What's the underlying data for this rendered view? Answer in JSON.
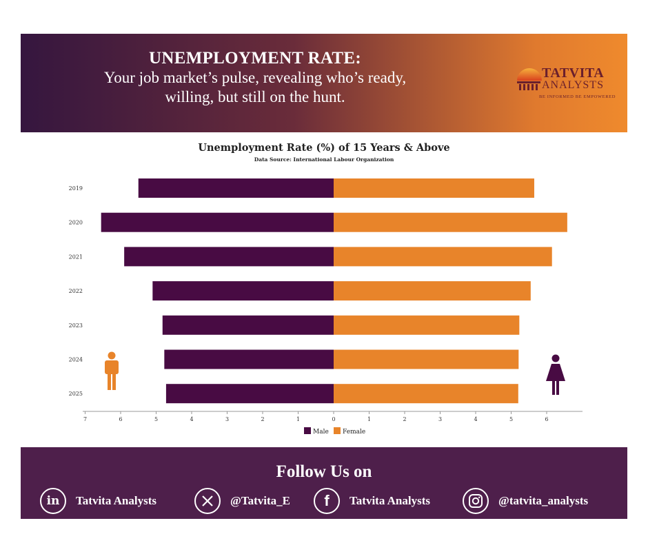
{
  "header": {
    "title": "UNEMPLOYMENT RATE:",
    "subtitle_line1": "Your job market’s pulse, revealing who’s ready,",
    "subtitle_line2": "willing, but still on the hunt.",
    "logo_name": "TATVITA",
    "logo_sub": "ANALYSTS",
    "logo_tagline": "BE INFORMED BE EMPOWERED"
  },
  "colors": {
    "male": "#480b43",
    "female": "#e8842a",
    "footer_bg": "#4e1f4b"
  },
  "chart_data": {
    "type": "bar",
    "orientation": "horizontal-diverging",
    "title": "Unemployment Rate (%) of 15 Years & Above",
    "subtitle": "Data Source: International Labour Organization",
    "categories": [
      "2019",
      "2020",
      "2021",
      "2022",
      "2023",
      "2024",
      "2025"
    ],
    "series": [
      {
        "name": "Male",
        "values": [
          5.5,
          6.55,
          5.9,
          5.1,
          4.82,
          4.77,
          4.72
        ]
      },
      {
        "name": "Female",
        "values": [
          5.65,
          6.58,
          6.15,
          5.55,
          5.23,
          5.21,
          5.2
        ]
      }
    ],
    "x_ticks_left": [
      "7",
      "6",
      "5",
      "4",
      "3",
      "2",
      "1",
      "0"
    ],
    "x_ticks_right": [
      "1",
      "2",
      "3",
      "4",
      "5",
      "6"
    ],
    "xlim": [
      -7,
      7
    ],
    "legend": [
      "Male",
      "Female"
    ],
    "legend_position": "bottom-center"
  },
  "footer": {
    "follow_text": "Follow Us on",
    "linkedin_label": "Tatvita Analysts",
    "x_label": "@Tatvita_E",
    "facebook_label": "Tatvita Analysts",
    "instagram_label": "@tatvita_analysts"
  }
}
